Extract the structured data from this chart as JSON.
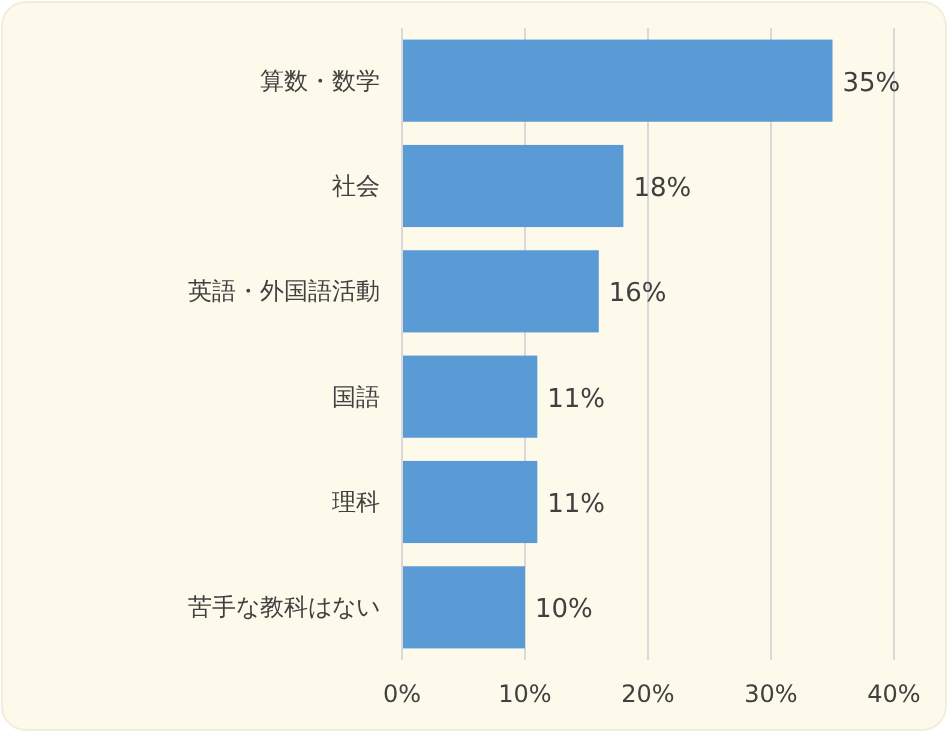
{
  "chart_data": {
    "type": "bar",
    "orientation": "horizontal",
    "categories": [
      "算数・数学",
      "社会",
      "英語・外国語活動",
      "国語",
      "理科",
      "苦手な教科はない"
    ],
    "values": [
      35,
      18,
      16,
      11,
      11,
      10
    ],
    "value_labels": [
      "35%",
      "18%",
      "16%",
      "11%",
      "11%",
      "10%"
    ],
    "color": "#5b9bd5",
    "xlim": [
      0,
      40
    ],
    "xticks": [
      {
        "value": 0,
        "label": "0%"
      },
      {
        "value": 10,
        "label": "10%"
      },
      {
        "value": 20,
        "label": "20%"
      },
      {
        "value": 30,
        "label": "30%"
      },
      {
        "value": 40,
        "label": "40%"
      }
    ],
    "grid": "x"
  }
}
